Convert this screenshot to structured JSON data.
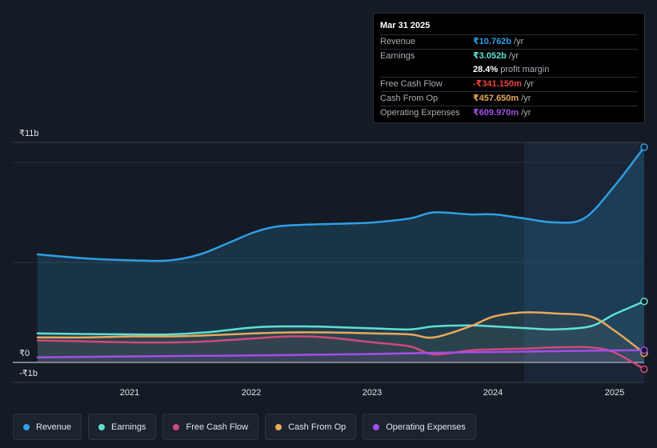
{
  "tooltip": {
    "date": "Mar 31 2025",
    "rows": [
      {
        "label": "Revenue",
        "value": "₹10.762b",
        "unit": "/yr",
        "color": "#2f9fe6"
      },
      {
        "label": "Earnings",
        "value": "₹3.052b",
        "unit": "/yr",
        "color": "#5ee0d4"
      },
      {
        "label": "",
        "value": "28.4%",
        "unit": "profit margin",
        "color": "#ffffff"
      },
      {
        "label": "Free Cash Flow",
        "value": "-₹341.150m",
        "unit": "/yr",
        "color": "#e8433f"
      },
      {
        "label": "Cash From Op",
        "value": "₹457.650m",
        "unit": "/yr",
        "color": "#e8a85a"
      },
      {
        "label": "Operating Expenses",
        "value": "₹609.970m",
        "unit": "/yr",
        "color": "#a34fe8"
      }
    ]
  },
  "legend": [
    {
      "label": "Revenue",
      "color": "#2f9fe6"
    },
    {
      "label": "Earnings",
      "color": "#5ee0d4"
    },
    {
      "label": "Free Cash Flow",
      "color": "#d2487c"
    },
    {
      "label": "Cash From Op",
      "color": "#e8a85a"
    },
    {
      "label": "Operating Expenses",
      "color": "#a34fe8"
    }
  ],
  "chart_data": {
    "type": "area",
    "ylim": [
      -1,
      11
    ],
    "y_tick_labels": [
      "₹11b",
      "₹0",
      "-₹1b"
    ],
    "x_tick_labels": [
      "2021",
      "2022",
      "2023",
      "2024",
      "2025"
    ],
    "x_ticks": [
      2021,
      2022,
      2023,
      2024,
      2025
    ],
    "xlim": [
      2020.1,
      2025.3
    ],
    "forecast_start": 2024.25,
    "series": [
      {
        "name": "Revenue",
        "color": "#2f9fe6",
        "fill": true,
        "x": [
          2020.2,
          2020.6,
          2021.0,
          2021.3,
          2021.55,
          2021.8,
          2022.0,
          2022.2,
          2022.5,
          2022.8,
          2023.0,
          2023.3,
          2023.5,
          2023.8,
          2024.0,
          2024.25,
          2024.5,
          2024.75,
          2025.0,
          2025.25
        ],
        "y": [
          5.4,
          5.2,
          5.1,
          5.1,
          5.4,
          6.0,
          6.5,
          6.8,
          6.9,
          6.95,
          7.0,
          7.2,
          7.5,
          7.4,
          7.4,
          7.2,
          7.0,
          7.2,
          8.8,
          10.76
        ]
      },
      {
        "name": "Earnings",
        "color": "#5ee0d4",
        "fill": false,
        "x": [
          2020.2,
          2020.6,
          2021.0,
          2021.3,
          2021.6,
          2022.0,
          2022.3,
          2022.6,
          2023.0,
          2023.3,
          2023.5,
          2023.8,
          2024.0,
          2024.3,
          2024.5,
          2024.8,
          2025.0,
          2025.25
        ],
        "y": [
          1.45,
          1.42,
          1.4,
          1.4,
          1.5,
          1.75,
          1.8,
          1.78,
          1.7,
          1.65,
          1.8,
          1.85,
          1.8,
          1.7,
          1.65,
          1.8,
          2.4,
          3.05
        ]
      },
      {
        "name": "Free Cash Flow",
        "color": "#d2487c",
        "fill": false,
        "x": [
          2020.2,
          2020.6,
          2021.0,
          2021.3,
          2021.6,
          2022.0,
          2022.3,
          2022.6,
          2023.0,
          2023.3,
          2023.5,
          2023.8,
          2024.0,
          2024.3,
          2024.5,
          2024.8,
          2025.0,
          2025.25
        ],
        "y": [
          1.1,
          1.05,
          1.0,
          1.0,
          1.05,
          1.2,
          1.3,
          1.25,
          1.0,
          0.8,
          0.4,
          0.6,
          0.65,
          0.7,
          0.75,
          0.75,
          0.5,
          -0.34
        ]
      },
      {
        "name": "Cash From Op",
        "color": "#e8a85a",
        "fill": false,
        "x": [
          2020.2,
          2020.6,
          2021.0,
          2021.3,
          2021.6,
          2022.0,
          2022.3,
          2022.6,
          2023.0,
          2023.3,
          2023.5,
          2023.8,
          2024.0,
          2024.25,
          2024.5,
          2024.8,
          2025.0,
          2025.25
        ],
        "y": [
          1.25,
          1.25,
          1.3,
          1.3,
          1.35,
          1.45,
          1.5,
          1.5,
          1.45,
          1.4,
          1.25,
          1.8,
          2.3,
          2.5,
          2.45,
          2.3,
          1.6,
          0.46
        ]
      },
      {
        "name": "Operating Expenses",
        "color": "#a34fe8",
        "fill": false,
        "x": [
          2020.2,
          2021.0,
          2022.0,
          2023.0,
          2023.5,
          2024.0,
          2024.5,
          2025.0,
          2025.25
        ],
        "y": [
          0.25,
          0.3,
          0.35,
          0.42,
          0.48,
          0.52,
          0.56,
          0.6,
          0.61
        ]
      }
    ]
  }
}
